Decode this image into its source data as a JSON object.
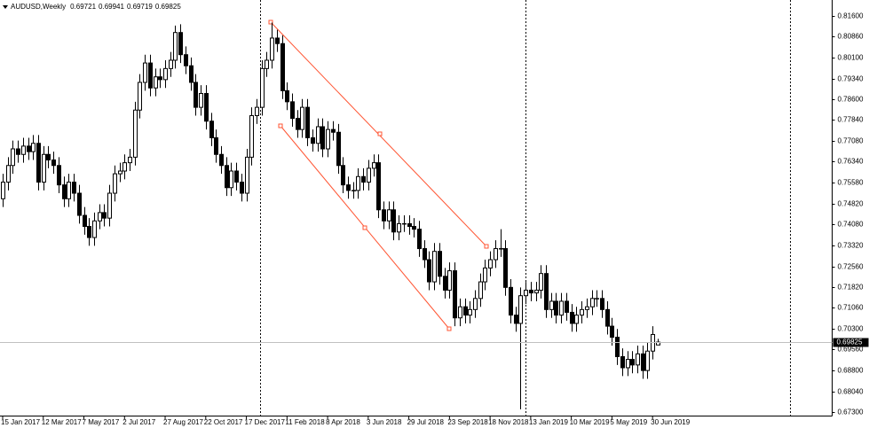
{
  "chart_data": {
    "type": "candlestick",
    "symbol": "AUDUSD,Weekly",
    "categories": [
      "15 Jan 2017",
      null,
      null,
      null,
      null,
      null,
      null,
      null,
      "12 Mar 2017",
      null,
      null,
      null,
      null,
      null,
      null,
      null,
      "7 May 2017",
      null,
      null,
      null,
      null,
      null,
      null,
      null,
      "2 Jul 2017",
      null,
      null,
      null,
      null,
      null,
      null,
      null,
      "27 Aug 2017",
      null,
      null,
      null,
      null,
      null,
      null,
      null,
      "22 Oct 2017",
      null,
      null,
      null,
      null,
      null,
      null,
      null,
      "17 Dec 2017",
      null,
      null,
      null,
      null,
      null,
      null,
      null,
      "11 Feb 2018",
      null,
      null,
      null,
      null,
      null,
      null,
      null,
      "8 Apr 2018",
      null,
      null,
      null,
      null,
      null,
      null,
      null,
      "3 Jun 2018",
      null,
      null,
      null,
      null,
      null,
      null,
      null,
      "29 Jul 2018",
      null,
      null,
      null,
      null,
      null,
      null,
      null,
      "23 Sep 2018",
      null,
      null,
      null,
      null,
      null,
      null,
      null,
      "18 Nov 2018",
      null,
      null,
      null,
      null,
      null,
      null,
      null,
      "13 Jan 2019",
      null,
      null,
      null,
      null,
      null,
      null,
      null,
      "10 Mar 2019",
      null,
      null,
      null,
      null,
      null,
      null,
      null,
      "5 May 2019",
      null,
      null,
      null,
      null,
      null,
      null,
      null,
      "30 Jun 2019",
      null
    ],
    "open": [
      0.75,
      0.756,
      0.762,
      0.768,
      0.766,
      0.769,
      0.767,
      0.77,
      0.756,
      0.766,
      0.764,
      0.762,
      0.755,
      0.75,
      0.756,
      0.752,
      0.744,
      0.74,
      0.736,
      0.742,
      0.745,
      0.743,
      0.752,
      0.759,
      0.76,
      0.763,
      0.765,
      0.782,
      0.792,
      0.799,
      0.79,
      0.794,
      0.793,
      0.797,
      0.8,
      0.81,
      0.802,
      0.798,
      0.792,
      0.783,
      0.788,
      0.778,
      0.772,
      0.766,
      0.762,
      0.754,
      0.76,
      0.756,
      0.752,
      0.765,
      0.78,
      0.783,
      0.797,
      0.8,
      0.808,
      0.806,
      0.789,
      0.785,
      0.779,
      0.775,
      0.783,
      0.772,
      0.77,
      0.776,
      0.768,
      0.775,
      0.774,
      0.762,
      0.755,
      0.753,
      0.753,
      0.758,
      0.756,
      0.761,
      0.763,
      0.746,
      0.742,
      0.746,
      0.738,
      0.741,
      0.741,
      0.74,
      0.739,
      0.732,
      0.728,
      0.72,
      0.731,
      0.722,
      0.717,
      0.724,
      0.707,
      0.711,
      0.708,
      0.71,
      0.714,
      0.72,
      0.725,
      0.728,
      0.732,
      0.732,
      0.718,
      0.708,
      0.705,
      0.715,
      0.717,
      0.716,
      0.717,
      0.723,
      0.71,
      0.713,
      0.708,
      0.713,
      0.709,
      0.705,
      0.708,
      0.71,
      0.711,
      0.714,
      0.714,
      0.71,
      0.704,
      0.7,
      0.693,
      0.689,
      0.692,
      0.69,
      0.694,
      0.688,
      0.695,
      0.69721
    ],
    "high": [
      0.759,
      0.765,
      0.771,
      0.771,
      0.772,
      0.772,
      0.773,
      0.773,
      0.769,
      0.769,
      0.767,
      0.765,
      0.758,
      0.759,
      0.759,
      0.755,
      0.747,
      0.743,
      0.745,
      0.748,
      0.748,
      0.755,
      0.762,
      0.763,
      0.766,
      0.768,
      0.785,
      0.795,
      0.802,
      0.802,
      0.797,
      0.797,
      0.8,
      0.803,
      0.8125,
      0.813,
      0.805,
      0.801,
      0.795,
      0.791,
      0.791,
      0.781,
      0.775,
      0.769,
      0.765,
      0.763,
      0.763,
      0.759,
      0.768,
      0.783,
      0.786,
      0.8,
      0.803,
      0.8136,
      0.811,
      0.809,
      0.792,
      0.788,
      0.782,
      0.786,
      0.786,
      0.775,
      0.779,
      0.779,
      0.778,
      0.778,
      0.777,
      0.765,
      0.758,
      0.756,
      0.761,
      0.761,
      0.764,
      0.766,
      0.766,
      0.749,
      0.749,
      0.749,
      0.744,
      0.744,
      0.744,
      0.743,
      0.742,
      0.735,
      0.731,
      0.734,
      0.734,
      0.725,
      0.727,
      0.727,
      0.714,
      0.714,
      0.713,
      0.717,
      0.723,
      0.728,
      0.731,
      0.735,
      0.739,
      0.735,
      0.721,
      0.711,
      0.718,
      0.72,
      0.72,
      0.72,
      0.726,
      0.726,
      0.716,
      0.716,
      0.716,
      0.716,
      0.712,
      0.711,
      0.713,
      0.714,
      0.717,
      0.717,
      0.717,
      0.713,
      0.707,
      0.703,
      0.696,
      0.695,
      0.695,
      0.697,
      0.697,
      0.698,
      0.704,
      0.69941
    ],
    "low": [
      0.747,
      0.753,
      0.759,
      0.763,
      0.763,
      0.764,
      0.764,
      0.753,
      0.753,
      0.761,
      0.759,
      0.752,
      0.747,
      0.747,
      0.749,
      0.741,
      0.737,
      0.733,
      0.733,
      0.739,
      0.74,
      0.74,
      0.749,
      0.756,
      0.757,
      0.76,
      0.762,
      0.779,
      0.789,
      0.787,
      0.787,
      0.79,
      0.79,
      0.794,
      0.797,
      0.799,
      0.795,
      0.789,
      0.78,
      0.78,
      0.775,
      0.769,
      0.763,
      0.759,
      0.751,
      0.751,
      0.753,
      0.749,
      0.749,
      0.762,
      0.777,
      0.78,
      0.794,
      0.797,
      0.803,
      0.786,
      0.782,
      0.776,
      0.772,
      0.772,
      0.769,
      0.767,
      0.767,
      0.765,
      0.765,
      0.771,
      0.759,
      0.752,
      0.75,
      0.75,
      0.75,
      0.753,
      0.753,
      0.758,
      0.743,
      0.739,
      0.739,
      0.735,
      0.735,
      0.738,
      0.737,
      0.736,
      0.729,
      0.725,
      0.717,
      0.717,
      0.719,
      0.714,
      0.714,
      0.704,
      0.704,
      0.705,
      0.705,
      0.707,
      0.711,
      0.717,
      0.722,
      0.725,
      0.729,
      0.715,
      0.705,
      0.702,
      0.674,
      0.712,
      0.713,
      0.713,
      0.714,
      0.707,
      0.707,
      0.705,
      0.705,
      0.706,
      0.702,
      0.702,
      0.705,
      0.707,
      0.708,
      0.711,
      0.707,
      0.701,
      0.697,
      0.69,
      0.686,
      0.686,
      0.687,
      0.687,
      0.685,
      0.685,
      0.692,
      0.69719
    ],
    "close": [
      0.756,
      0.762,
      0.768,
      0.766,
      0.769,
      0.767,
      0.77,
      0.756,
      0.766,
      0.764,
      0.762,
      0.755,
      0.75,
      0.756,
      0.752,
      0.744,
      0.74,
      0.736,
      0.742,
      0.745,
      0.743,
      0.752,
      0.759,
      0.76,
      0.763,
      0.765,
      0.782,
      0.792,
      0.799,
      0.79,
      0.794,
      0.793,
      0.797,
      0.8,
      0.81,
      0.802,
      0.798,
      0.792,
      0.783,
      0.788,
      0.778,
      0.772,
      0.766,
      0.762,
      0.754,
      0.76,
      0.756,
      0.752,
      0.765,
      0.78,
      0.783,
      0.797,
      0.8,
      0.808,
      0.806,
      0.789,
      0.785,
      0.779,
      0.775,
      0.783,
      0.772,
      0.77,
      0.776,
      0.768,
      0.775,
      0.774,
      0.762,
      0.755,
      0.753,
      0.753,
      0.758,
      0.756,
      0.761,
      0.763,
      0.746,
      0.742,
      0.746,
      0.738,
      0.741,
      0.741,
      0.74,
      0.739,
      0.732,
      0.728,
      0.72,
      0.731,
      0.722,
      0.717,
      0.724,
      0.707,
      0.711,
      0.708,
      0.71,
      0.714,
      0.72,
      0.725,
      0.728,
      0.732,
      0.732,
      0.718,
      0.708,
      0.705,
      0.715,
      0.717,
      0.716,
      0.717,
      0.723,
      0.71,
      0.713,
      0.708,
      0.713,
      0.709,
      0.705,
      0.708,
      0.71,
      0.711,
      0.714,
      0.714,
      0.71,
      0.704,
      0.7,
      0.693,
      0.689,
      0.692,
      0.69,
      0.694,
      0.688,
      0.695,
      0.701,
      0.69825
    ],
    "ylim": [
      0.6714,
      0.8211
    ],
    "yticks": [
      {
        "value": 0.816,
        "label": "0.81600"
      },
      {
        "value": 0.8086,
        "label": "0.80860"
      },
      {
        "value": 0.801,
        "label": "0.80100"
      },
      {
        "value": 0.7934,
        "label": "0.79340"
      },
      {
        "value": 0.786,
        "label": "0.78600"
      },
      {
        "value": 0.7784,
        "label": "0.77840"
      },
      {
        "value": 0.7708,
        "label": "0.77080"
      },
      {
        "value": 0.7634,
        "label": "0.76340"
      },
      {
        "value": 0.7558,
        "label": "0.75580"
      },
      {
        "value": 0.7482,
        "label": "0.74820"
      },
      {
        "value": 0.7408,
        "label": "0.74080"
      },
      {
        "value": 0.7332,
        "label": "0.73320"
      },
      {
        "value": 0.7256,
        "label": "0.72560"
      },
      {
        "value": 0.7182,
        "label": "0.71820"
      },
      {
        "value": 0.7106,
        "label": "0.71060"
      },
      {
        "value": 0.703,
        "label": "0.70300"
      },
      {
        "value": 0.6956,
        "label": "0.69560"
      },
      {
        "value": 0.688,
        "label": "0.68800"
      },
      {
        "value": 0.6804,
        "label": "0.68040"
      },
      {
        "value": 0.673,
        "label": "0.67300"
      }
    ],
    "bull_color": "#ffffff",
    "bear_color": "#000000",
    "line_color": "#000000",
    "channel_color": "#ff5533"
  }
}
